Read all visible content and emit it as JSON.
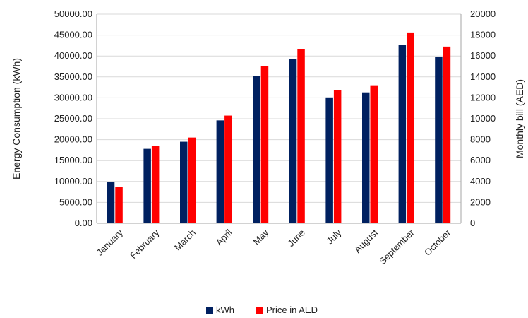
{
  "chart_data": {
    "type": "bar",
    "categories": [
      "January",
      "February",
      "March",
      "April",
      "May",
      "June",
      "July",
      "August",
      "September",
      "October"
    ],
    "series": [
      {
        "name": "kWh",
        "axis": "left",
        "color": "#002060",
        "values": [
          9800,
          17800,
          19500,
          24600,
          35300,
          39300,
          30100,
          31300,
          42700,
          39700
        ]
      },
      {
        "name": "Price in AED",
        "axis": "right",
        "color": "#ff0000",
        "values": [
          3450,
          7400,
          8200,
          10300,
          15000,
          16650,
          12750,
          13200,
          18250,
          16900
        ]
      }
    ],
    "ylabel": "Energy Consumption (kWh)",
    "y2label": "Monthly bill (AED)",
    "ylim": [
      0,
      50000
    ],
    "y2lim": [
      0,
      20000
    ],
    "yticks": [
      "0.00",
      "5000.00",
      "10000.00",
      "15000.00",
      "20000.00",
      "25000.00",
      "30000.00",
      "35000.00",
      "40000.00",
      "45000.00",
      "50000.00"
    ],
    "y2ticks": [
      "0",
      "2000",
      "4000",
      "6000",
      "8000",
      "10000",
      "12000",
      "14000",
      "16000",
      "18000",
      "20000"
    ],
    "grid": true,
    "legend_position": "bottom"
  }
}
